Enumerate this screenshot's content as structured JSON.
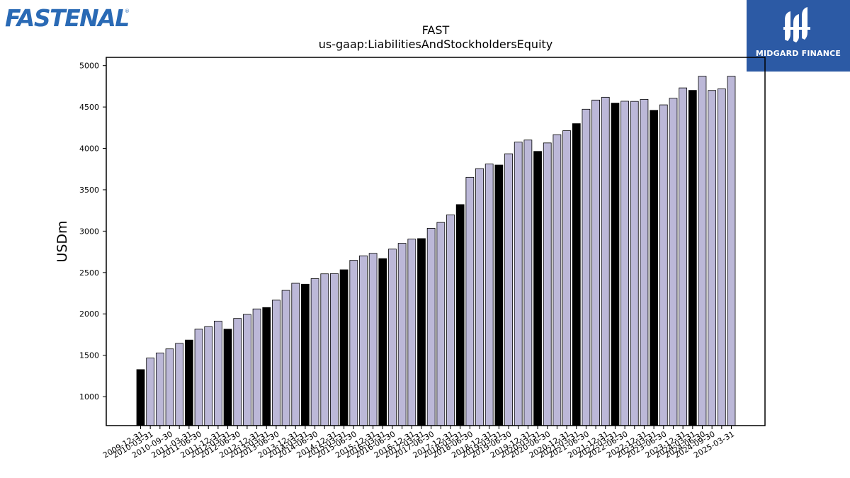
{
  "logos": {
    "left_text": "FASTENAL",
    "left_mark": "®",
    "right_text": "MIDGARD FINANCE",
    "right_icon": "midgard-logo-icon"
  },
  "chart_data": {
    "type": "bar",
    "title": "FAST",
    "subtitle": "us-gaap:LiabilitiesAndStockholdersEquity",
    "xlabel": "",
    "ylabel": "USDm",
    "ylim": [
      650,
      5100
    ],
    "yticks": [
      1000,
      1500,
      2000,
      2500,
      3000,
      3500,
      4000,
      4500,
      5000
    ],
    "grid": false,
    "colors": {
      "fy": "#000000",
      "quarter": "#bcb8d8",
      "edge": "#000000"
    },
    "categories": [
      "2009-12-31",
      "2010-03-31",
      "2010-06-30",
      "2010-09-30",
      "2010-12-31",
      "2011-03-31",
      "2011-06-30",
      "2011-09-30",
      "2011-12-31",
      "2012-03-31",
      "2012-06-30",
      "2012-09-30",
      "2012-12-31",
      "2013-03-31",
      "2013-06-30",
      "2013-09-30",
      "2013-12-31",
      "2014-03-31",
      "2014-06-30",
      "2014-09-30",
      "2014-12-31",
      "2015-03-31",
      "2015-06-30",
      "2015-09-30",
      "2015-12-31",
      "2016-03-31",
      "2016-06-30",
      "2016-09-30",
      "2016-12-31",
      "2017-03-31",
      "2017-06-30",
      "2017-09-30",
      "2017-12-31",
      "2018-03-31",
      "2018-06-30",
      "2018-09-30",
      "2018-12-31",
      "2019-03-31",
      "2019-06-30",
      "2019-09-30",
      "2019-12-31",
      "2020-03-31",
      "2020-06-30",
      "2020-09-30",
      "2020-12-31",
      "2021-03-31",
      "2021-06-30",
      "2021-09-30",
      "2021-12-31",
      "2022-03-31",
      "2022-06-30",
      "2022-09-30",
      "2022-12-31",
      "2023-03-31",
      "2023-06-30",
      "2023-09-30",
      "2023-12-31",
      "2024-03-31",
      "2024-06-30",
      "2024-09-30",
      "2024-12-31",
      "2025-03-31"
    ],
    "xtick_labels": [
      "2009-12-31",
      "2010-03-31",
      "2010-09-30",
      "2011-03-31",
      "2011-06-30",
      "2011-12-31",
      "2012-03-31",
      "2012-06-30",
      "2012-12-31",
      "2013-03-31",
      "2013-06-30",
      "2013-12-31",
      "2014-03-31",
      "2014-06-30",
      "2014-12-31",
      "2015-03-31",
      "2015-06-30",
      "2015-12-31",
      "2016-03-31",
      "2016-06-30",
      "2016-12-31",
      "2017-03-31",
      "2017-06-30",
      "2017-12-31",
      "2018-03-31",
      "2018-06-30",
      "2018-12-31",
      "2019-03-31",
      "2019-06-30",
      "2019-12-31",
      "2020-03-31",
      "2020-06-30",
      "2020-12-31",
      "2021-03-31",
      "2021-06-30",
      "2021-12-31",
      "2022-03-31",
      "2022-06-30",
      "2022-12-31",
      "2023-03-31",
      "2023-06-30",
      "2023-12-31",
      "2024-03-31",
      "2024-06-30",
      "2024-09-30",
      "2025-03-31"
    ],
    "values": [
      1327,
      1467,
      1528,
      1577,
      1644,
      1684,
      1815,
      1846,
      1913,
      1815,
      1945,
      1994,
      2060,
      2077,
      2166,
      2284,
      2370,
      2359,
      2426,
      2484,
      2487,
      2533,
      2647,
      2702,
      2732,
      2668,
      2783,
      2853,
      2904,
      2910,
      3034,
      3105,
      3197,
      3321,
      3651,
      3756,
      3811,
      3799,
      3935,
      4076,
      4101,
      3964,
      4066,
      4166,
      4214,
      4299,
      4473,
      4584,
      4618,
      4547,
      4570,
      4568,
      4592,
      4460,
      4526,
      4606,
      4731,
      4701,
      4872,
      4700,
      4720,
      4872
    ],
    "fiscal_year_end": [
      true,
      false,
      false,
      false,
      false,
      true,
      false,
      false,
      false,
      true,
      false,
      false,
      false,
      true,
      false,
      false,
      false,
      true,
      false,
      false,
      false,
      true,
      false,
      false,
      false,
      true,
      false,
      false,
      false,
      true,
      false,
      false,
      false,
      true,
      false,
      false,
      false,
      true,
      false,
      false,
      false,
      true,
      false,
      false,
      false,
      true,
      false,
      false,
      false,
      true,
      false,
      false,
      false,
      true,
      false,
      false,
      false,
      true,
      false,
      false,
      false,
      false
    ]
  }
}
